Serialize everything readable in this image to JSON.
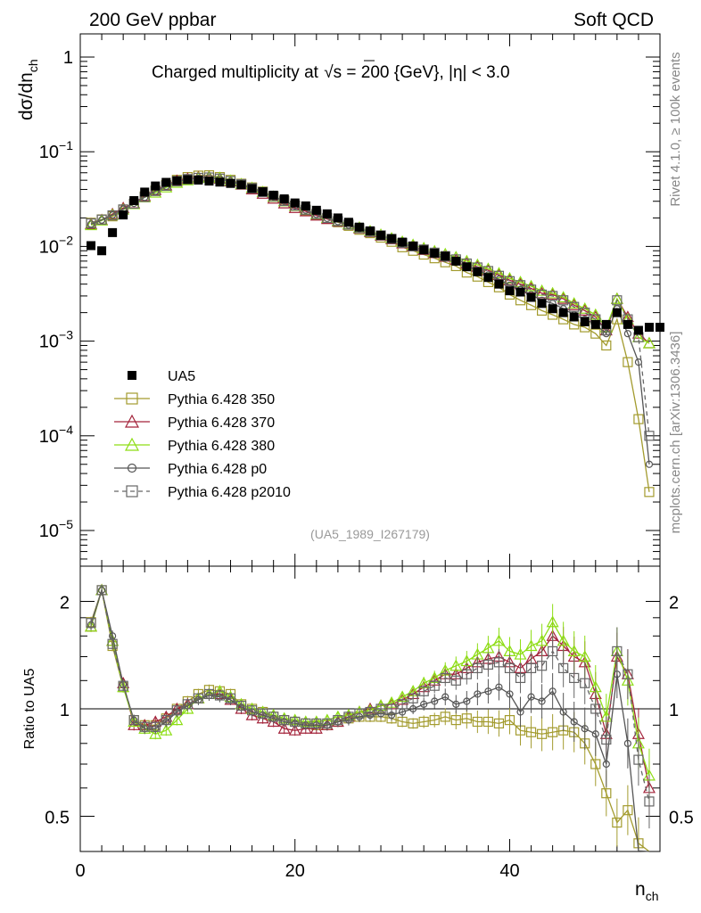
{
  "header": {
    "left": "200 GeV ppbar",
    "right": "Soft QCD"
  },
  "side": {
    "rivet": "Rivet 4.1.0, ≥ 100k events",
    "mcplots": "mcplots.cern.ch [arXiv:1306.3436]"
  },
  "chart_data": [
    {
      "type": "scatter",
      "panel": "main",
      "title_parts": [
        "Charged multiplicity at ",
        "s",
        " = 200 {GeV}, |η| < 3.0"
      ],
      "title": "Charged multiplicity at √s = 200 {GeV}, |η| < 3.0",
      "ylabel": "dσ/dn_ch",
      "ylabel_parts": [
        "dσ/dn",
        "ch"
      ],
      "yscale": "log",
      "ylim": [
        5e-06,
        2.5
      ],
      "xlim": [
        0,
        54
      ],
      "ytick_labels": [
        {
          "base": "1",
          "exp": "",
          "v": 1
        },
        {
          "base": "10",
          "exp": "−1",
          "v": 0.1
        },
        {
          "base": "10",
          "exp": "−2",
          "v": 0.01
        },
        {
          "base": "10",
          "exp": "−3",
          "v": 0.001
        },
        {
          "base": "10",
          "exp": "−4",
          "v": 0.0001
        },
        {
          "base": "10",
          "exp": "−5",
          "v": 1e-05
        }
      ],
      "annotation": "(UA5_1989_I267179)",
      "legend_placement": "lower-left",
      "x": [
        1,
        2,
        3,
        4,
        5,
        6,
        7,
        8,
        9,
        10,
        11,
        12,
        13,
        14,
        15,
        16,
        17,
        18,
        19,
        20,
        21,
        22,
        23,
        24,
        25,
        26,
        27,
        28,
        29,
        30,
        31,
        32,
        33,
        34,
        35,
        36,
        37,
        38,
        39,
        40,
        41,
        42,
        43,
        44,
        45,
        46,
        47,
        48,
        49,
        50,
        51,
        52,
        53
      ],
      "data": {
        "name": "UA5",
        "x": [
          1,
          2,
          3,
          4,
          5,
          6,
          7,
          8,
          9,
          10,
          11,
          12,
          13,
          14,
          15,
          16,
          17,
          18,
          19,
          20,
          21,
          22,
          23,
          24,
          25,
          26,
          27,
          28,
          29,
          30,
          31,
          32,
          33,
          34,
          35,
          36,
          37,
          38,
          39,
          40,
          41,
          42,
          43,
          44,
          45,
          46,
          47,
          48,
          49,
          50,
          51,
          52,
          53,
          54
        ],
        "values": [
          0.0102,
          0.009,
          0.014,
          0.0215,
          0.0305,
          0.0375,
          0.0435,
          0.0475,
          0.0495,
          0.0508,
          0.0502,
          0.049,
          0.0478,
          0.0463,
          0.0448,
          0.0408,
          0.0378,
          0.0348,
          0.0318,
          0.0288,
          0.0268,
          0.0241,
          0.0221,
          0.02,
          0.018,
          0.016,
          0.0146,
          0.0131,
          0.0121,
          0.0111,
          0.0101,
          0.0092,
          0.0085,
          0.0079,
          0.007,
          0.0061,
          0.0054,
          0.0047,
          0.004,
          0.0034,
          0.0033,
          0.0029,
          0.0025,
          0.0022,
          0.002,
          0.0018,
          0.0016,
          0.0015,
          0.0015,
          0.002,
          0.0015,
          0.0013,
          0.0014,
          0.0014
        ]
      },
      "series": [
        {
          "name": "Pythia 6.428 350",
          "color": "#a39b2e",
          "marker": "square-open",
          "dash": false,
          "values": [
            0.0178,
            0.0193,
            0.0208,
            0.0245,
            0.0282,
            0.0338,
            0.039,
            0.0445,
            0.0505,
            0.054,
            0.056,
            0.0565,
            0.054,
            0.0505,
            0.046,
            0.042,
            0.038,
            0.034,
            0.0305,
            0.027,
            0.024,
            0.0215,
            0.0195,
            0.018,
            0.0165,
            0.015,
            0.0138,
            0.0124,
            0.0112,
            0.0098,
            0.009,
            0.0082,
            0.0075,
            0.0068,
            0.0062,
            0.0053,
            0.0048,
            0.0042,
            0.0037,
            0.0031,
            0.0027,
            0.0024,
            0.0021,
            0.0019,
            0.0017,
            0.0015,
            0.0014,
            0.0012,
            0.0009,
            0.0017,
            0.0006,
            0.00015,
            2.55e-05
          ]
        },
        {
          "name": "Pythia 6.428 370",
          "color": "#a3233a",
          "marker": "triangle-open",
          "dash": false,
          "values": [
            0.0172,
            0.019,
            0.022,
            0.0255,
            0.0285,
            0.034,
            0.0395,
            0.044,
            0.0495,
            0.052,
            0.054,
            0.0545,
            0.052,
            0.0485,
            0.045,
            0.04,
            0.036,
            0.032,
            0.0285,
            0.0255,
            0.0235,
            0.0212,
            0.0195,
            0.0183,
            0.017,
            0.0155,
            0.0142,
            0.013,
            0.0119,
            0.0108,
            0.01,
            0.0092,
            0.0085,
            0.0078,
            0.0072,
            0.0066,
            0.0061,
            0.0056,
            0.005,
            0.0044,
            0.004,
            0.0036,
            0.0032,
            0.0031,
            0.0028,
            0.0024,
            0.0021,
            0.0018,
            0.0013,
            0.0028,
            0.0018,
            0.0012,
            0.00095
          ]
        },
        {
          "name": "Pythia 6.428 380",
          "color": "#8ddd14",
          "marker": "triangle-open",
          "dash": false,
          "values": [
            0.0168,
            0.0188,
            0.0215,
            0.0245,
            0.028,
            0.033,
            0.037,
            0.042,
            0.047,
            0.05,
            0.053,
            0.054,
            0.053,
            0.0495,
            0.0455,
            0.0415,
            0.0375,
            0.0335,
            0.03,
            0.0268,
            0.0245,
            0.022,
            0.02,
            0.0186,
            0.0172,
            0.0158,
            0.0145,
            0.0133,
            0.0122,
            0.0112,
            0.0104,
            0.0096,
            0.0089,
            0.0083,
            0.0077,
            0.007,
            0.0064,
            0.0058,
            0.0052,
            0.0046,
            0.0042,
            0.0038,
            0.0034,
            0.0032,
            0.0029,
            0.0025,
            0.0022,
            0.0019,
            0.0014,
            0.0028,
            0.0017,
            0.0011,
            0.00095
          ]
        },
        {
          "name": "Pythia 6.428 p0",
          "color": "#555555",
          "marker": "circle-open",
          "dash": false,
          "values": [
            0.0172,
            0.019,
            0.0215,
            0.0248,
            0.0285,
            0.033,
            0.0382,
            0.0432,
            0.0482,
            0.051,
            0.0525,
            0.053,
            0.0515,
            0.0485,
            0.0452,
            0.041,
            0.0372,
            0.0335,
            0.03,
            0.0268,
            0.0242,
            0.0218,
            0.0198,
            0.0183,
            0.0168,
            0.0154,
            0.0141,
            0.0129,
            0.0118,
            0.0107,
            0.0098,
            0.009,
            0.0082,
            0.0075,
            0.0068,
            0.0061,
            0.0056,
            0.005,
            0.0045,
            0.0039,
            0.0035,
            0.0031,
            0.0027,
            0.0025,
            0.0022,
            0.0019,
            0.0017,
            0.0015,
            0.0012,
            0.0022,
            0.0012,
            0.0006,
            5e-05
          ]
        },
        {
          "name": "Pythia 6.428 p2010",
          "color": "#666666",
          "marker": "square-open",
          "dash": true,
          "values": [
            0.0175,
            0.0192,
            0.0213,
            0.0246,
            0.0283,
            0.0333,
            0.0385,
            0.0437,
            0.0487,
            0.0515,
            0.053,
            0.0535,
            0.052,
            0.049,
            0.0455,
            0.0413,
            0.0375,
            0.0338,
            0.0302,
            0.027,
            0.0244,
            0.022,
            0.02,
            0.0185,
            0.017,
            0.0156,
            0.0143,
            0.0131,
            0.012,
            0.0109,
            0.01,
            0.0093,
            0.0086,
            0.0079,
            0.0073,
            0.0066,
            0.006,
            0.0055,
            0.0049,
            0.0043,
            0.0039,
            0.0035,
            0.0031,
            0.003,
            0.0027,
            0.0023,
            0.002,
            0.0017,
            0.0013,
            0.0027,
            0.0017,
            0.0011,
            0.0001
          ]
        }
      ]
    },
    {
      "type": "line",
      "panel": "ratio",
      "ylabel": "Ratio to UA5",
      "xlabel": "n_ch",
      "xlabel_parts": [
        "n",
        "ch"
      ],
      "ylim": [
        0.38,
        2.4
      ],
      "xlim": [
        0,
        54
      ],
      "ytick_labels": [
        "0.5",
        "1",
        "2"
      ],
      "xtick_labels": [
        "0",
        "20",
        "40"
      ],
      "reference_line": 1,
      "series": [
        {
          "name": "Pythia 6.428 350",
          "values": [
            1.75,
            2.15,
            1.5,
            1.15,
            0.93,
            0.9,
            0.9,
            0.94,
            1.0,
            1.05,
            1.1,
            1.13,
            1.12,
            1.1,
            1.03,
            1.0,
            0.98,
            0.95,
            0.93,
            0.92,
            0.91,
            0.9,
            0.9,
            0.92,
            0.94,
            0.95,
            0.95,
            0.95,
            0.94,
            0.92,
            0.91,
            0.92,
            0.93,
            0.95,
            0.93,
            0.94,
            0.92,
            0.92,
            0.91,
            0.93,
            0.87,
            0.86,
            0.85,
            0.86,
            0.87,
            0.86,
            0.8,
            0.7,
            0.58,
            0.48,
            0.52,
            0.42,
            0.25
          ]
        },
        {
          "name": "Pythia 6.428 370",
          "values": [
            1.7,
            2.15,
            1.55,
            1.18,
            0.9,
            0.9,
            0.92,
            0.95,
            1.0,
            1.03,
            1.07,
            1.1,
            1.1,
            1.06,
            1.0,
            0.96,
            0.94,
            0.92,
            0.88,
            0.87,
            0.88,
            0.88,
            0.9,
            0.92,
            0.95,
            0.98,
            1.0,
            1.02,
            1.03,
            1.06,
            1.1,
            1.15,
            1.2,
            1.25,
            1.25,
            1.3,
            1.35,
            1.38,
            1.4,
            1.35,
            1.3,
            1.38,
            1.45,
            1.6,
            1.5,
            1.4,
            1.35,
            1.1,
            0.85,
            1.4,
            1.25,
            0.85,
            0.6
          ]
        },
        {
          "name": "Pythia 6.428 380",
          "values": [
            1.7,
            2.15,
            1.55,
            1.15,
            0.92,
            0.88,
            0.85,
            0.87,
            0.93,
            1.0,
            1.07,
            1.1,
            1.12,
            1.08,
            1.03,
            1.0,
            0.98,
            0.96,
            0.94,
            0.93,
            0.92,
            0.92,
            0.93,
            0.95,
            0.96,
            0.98,
            0.99,
            1.02,
            1.04,
            1.08,
            1.12,
            1.18,
            1.22,
            1.28,
            1.32,
            1.36,
            1.42,
            1.48,
            1.55,
            1.45,
            1.42,
            1.5,
            1.55,
            1.75,
            1.55,
            1.45,
            1.4,
            1.15,
            0.95,
            1.45,
            1.2,
            0.8,
            0.65
          ]
        },
        {
          "name": "Pythia 6.428 p0",
          "values": [
            1.72,
            2.15,
            1.6,
            1.17,
            0.93,
            0.88,
            0.88,
            0.92,
            0.98,
            1.02,
            1.06,
            1.09,
            1.08,
            1.06,
            1.01,
            0.98,
            0.96,
            0.94,
            0.92,
            0.91,
            0.9,
            0.9,
            0.9,
            0.92,
            0.93,
            0.95,
            0.96,
            0.97,
            0.96,
            0.98,
            1.0,
            1.03,
            1.05,
            1.08,
            1.03,
            1.05,
            1.1,
            1.12,
            1.15,
            1.1,
            0.98,
            1.08,
            1.05,
            1.12,
            0.98,
            0.92,
            0.88,
            0.85,
            0.7,
            1.25,
            0.8,
            0.4,
            0.32
          ]
        },
        {
          "name": "Pythia 6.428 p2010",
          "values": [
            1.74,
            2.15,
            1.52,
            1.16,
            0.93,
            0.89,
            0.89,
            0.93,
            0.99,
            1.03,
            1.07,
            1.1,
            1.09,
            1.07,
            1.02,
            0.99,
            0.97,
            0.95,
            0.93,
            0.92,
            0.91,
            0.91,
            0.91,
            0.93,
            0.95,
            0.97,
            0.98,
            1.0,
            1.0,
            1.03,
            1.07,
            1.12,
            1.16,
            1.22,
            1.2,
            1.25,
            1.3,
            1.33,
            1.35,
            1.3,
            1.22,
            1.3,
            1.32,
            1.45,
            1.3,
            1.22,
            1.18,
            1.0,
            0.82,
            1.45,
            1.25,
            0.72,
            0.55
          ]
        }
      ]
    }
  ]
}
